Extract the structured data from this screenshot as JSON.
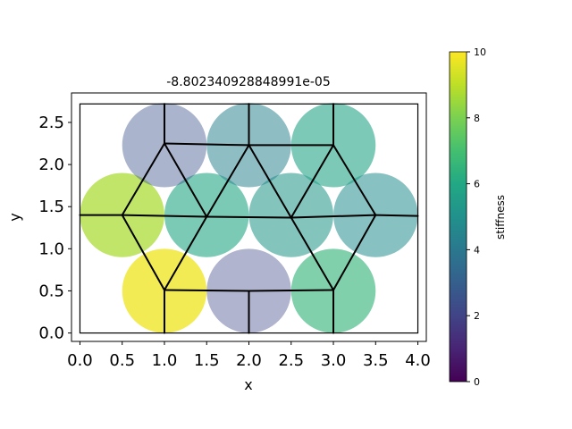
{
  "chart_data": {
    "type": "scatter",
    "title": "-8.802340928848991e-05",
    "xlabel": "x",
    "ylabel": "y",
    "xlim": [
      -0.1,
      4.1
    ],
    "ylim": [
      -0.1,
      2.85
    ],
    "xticks": [
      "0.0",
      "0.5",
      "1.0",
      "1.5",
      "2.0",
      "2.5",
      "3.0",
      "3.5",
      "4.0"
    ],
    "yticks": [
      "0.0",
      "0.5",
      "1.0",
      "1.5",
      "2.0",
      "2.5"
    ],
    "grid": false,
    "colorbar": {
      "label": "stiffness",
      "range": [
        0,
        10
      ],
      "ticks": [
        "0",
        "2",
        "4",
        "6",
        "8",
        "10"
      ],
      "colormap": "viridis"
    },
    "circles": [
      {
        "x": 1.0,
        "y": 0.5,
        "radius": 0.5,
        "stiffness": 9.8
      },
      {
        "x": 2.0,
        "y": 0.5,
        "radius": 0.5,
        "stiffness": 2.2
      },
      {
        "x": 3.0,
        "y": 0.5,
        "radius": 0.5,
        "stiffness": 6.5
      },
      {
        "x": 0.5,
        "y": 1.4,
        "radius": 0.5,
        "stiffness": 8.7
      },
      {
        "x": 1.5,
        "y": 1.4,
        "radius": 0.5,
        "stiffness": 5.9
      },
      {
        "x": 2.5,
        "y": 1.4,
        "radius": 0.5,
        "stiffness": 5.2
      },
      {
        "x": 3.5,
        "y": 1.4,
        "radius": 0.5,
        "stiffness": 4.8
      },
      {
        "x": 1.0,
        "y": 2.23,
        "radius": 0.5,
        "stiffness": 2.6
      },
      {
        "x": 2.0,
        "y": 2.23,
        "radius": 0.5,
        "stiffness": 4.4
      },
      {
        "x": 3.0,
        "y": 2.23,
        "radius": 0.5,
        "stiffness": 5.8
      }
    ],
    "nodes": [
      {
        "x": 0.0,
        "y": 1.4
      },
      {
        "x": 0.5,
        "y": 1.4
      },
      {
        "x": 1.0,
        "y": 0.0
      },
      {
        "x": 1.0,
        "y": 0.51
      },
      {
        "x": 1.0,
        "y": 2.25
      },
      {
        "x": 1.0,
        "y": 2.72
      },
      {
        "x": 1.5,
        "y": 1.38
      },
      {
        "x": 2.0,
        "y": 0.0
      },
      {
        "x": 2.0,
        "y": 0.5
      },
      {
        "x": 2.0,
        "y": 2.23
      },
      {
        "x": 2.0,
        "y": 2.72
      },
      {
        "x": 2.5,
        "y": 1.37
      },
      {
        "x": 3.0,
        "y": 0.0
      },
      {
        "x": 3.0,
        "y": 0.51
      },
      {
        "x": 3.0,
        "y": 2.23
      },
      {
        "x": 3.0,
        "y": 2.72
      },
      {
        "x": 3.5,
        "y": 1.4
      },
      {
        "x": 4.0,
        "y": 1.39
      }
    ],
    "edges": [
      [
        0,
        1
      ],
      [
        1,
        6
      ],
      [
        6,
        11
      ],
      [
        11,
        16
      ],
      [
        16,
        17
      ],
      [
        1,
        3
      ],
      [
        1,
        4
      ],
      [
        3,
        2
      ],
      [
        3,
        6
      ],
      [
        3,
        8
      ],
      [
        8,
        7
      ],
      [
        8,
        13
      ],
      [
        13,
        12
      ],
      [
        13,
        11
      ],
      [
        13,
        16
      ],
      [
        4,
        5
      ],
      [
        4,
        6
      ],
      [
        4,
        9
      ],
      [
        9,
        10
      ],
      [
        9,
        6
      ],
      [
        9,
        11
      ],
      [
        9,
        14
      ],
      [
        14,
        15
      ],
      [
        14,
        11
      ],
      [
        14,
        16
      ]
    ],
    "boundary": {
      "xmin": 0.0,
      "xmax": 4.0,
      "ymin": 0.0,
      "ymax": 2.72
    }
  }
}
